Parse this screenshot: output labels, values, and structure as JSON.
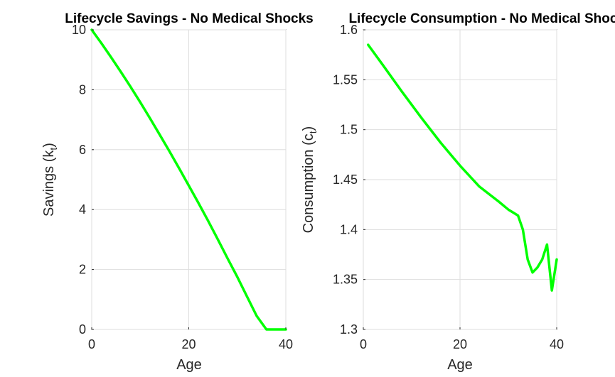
{
  "chart_data": [
    {
      "type": "line",
      "title": "Lifecycle Savings - No Medical Shocks",
      "xlabel": "Age",
      "ylabel": "Savings (k",
      "ylabel_subscript": "t",
      "xlim": [
        0,
        40
      ],
      "ylim": [
        0,
        10
      ],
      "xticks": [
        0,
        20,
        40
      ],
      "yticks": [
        0,
        2,
        4,
        6,
        8,
        10
      ],
      "grid": true,
      "color": "#00ff00",
      "series": [
        {
          "x": [
            0,
            2,
            4,
            6,
            8,
            10,
            12,
            14,
            16,
            18,
            20,
            22,
            24,
            26,
            28,
            30,
            32,
            34,
            36,
            38,
            40
          ],
          "values": [
            10.0,
            9.55,
            9.08,
            8.6,
            8.1,
            7.58,
            7.05,
            6.5,
            5.95,
            5.38,
            4.8,
            4.22,
            3.62,
            3.0,
            2.37,
            1.75,
            1.1,
            0.45,
            0.0,
            -0.0,
            -0.0
          ]
        }
      ]
    },
    {
      "type": "line",
      "title": "Lifecycle Consumption - No Medical Shocks",
      "xlabel": "Age",
      "ylabel": "Consumption (c",
      "ylabel_subscript": "t",
      "xlim": [
        0,
        40
      ],
      "ylim": [
        1.3,
        1.6
      ],
      "xticks": [
        0,
        20,
        40
      ],
      "yticks": [
        1.3,
        1.35,
        1.4,
        1.45,
        1.5,
        1.55,
        1.6
      ],
      "grid": true,
      "color": "#00ff00",
      "series": [
        {
          "x": [
            1,
            4,
            8,
            12,
            16,
            20,
            24,
            28,
            30,
            31,
            32,
            33,
            34,
            35,
            36,
            37,
            38,
            39,
            40
          ],
          "values": [
            1.585,
            1.565,
            1.538,
            1.512,
            1.487,
            1.464,
            1.443,
            1.428,
            1.42,
            1.417,
            1.414,
            1.4,
            1.37,
            1.357,
            1.362,
            1.37,
            1.385,
            1.339,
            1.37
          ]
        }
      ]
    }
  ]
}
